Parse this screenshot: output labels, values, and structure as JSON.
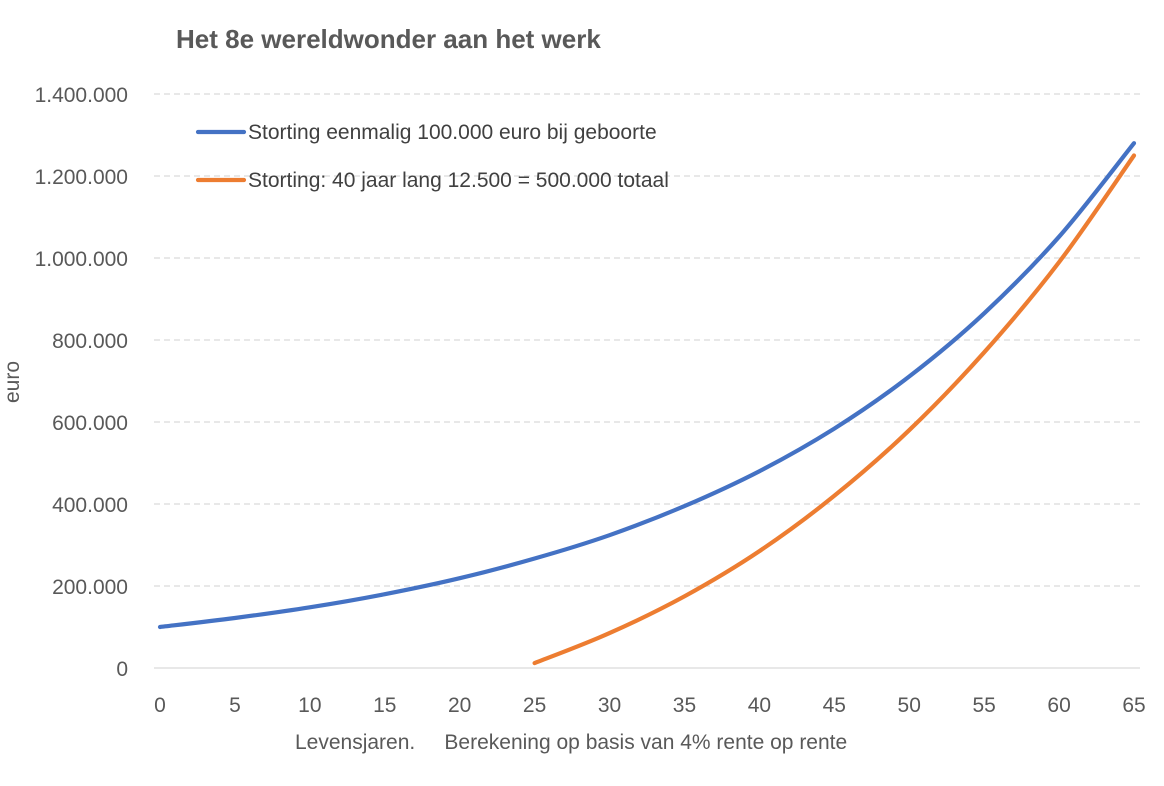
{
  "chart_data": {
    "type": "line",
    "title": "Het 8e wereldwonder aan het werk",
    "xlabel": "Levensjaren.     Berekening op basis van 4% rente op rente",
    "ylabel": "euro",
    "xlim": [
      0,
      65
    ],
    "ylim": [
      0,
      1400000
    ],
    "x_ticks": [
      "0",
      "5",
      "10",
      "15",
      "20",
      "25",
      "30",
      "35",
      "40",
      "45",
      "50",
      "55",
      "60",
      "65"
    ],
    "y_ticks": [
      "0",
      "200.000",
      "400.000",
      "600.000",
      "800.000",
      "1.000.000",
      "1.200.000",
      "1.400.000"
    ],
    "y_tick_values": [
      0,
      200000,
      400000,
      600000,
      800000,
      1000000,
      1200000,
      1400000
    ],
    "x_tick_values": [
      0,
      5,
      10,
      15,
      20,
      25,
      30,
      35,
      40,
      45,
      50,
      55,
      60,
      65
    ],
    "grid": true,
    "legend_position": "top-left",
    "series": [
      {
        "name": "Storting eenmalig 100.000 euro bij geboorte",
        "color": "#4472c4",
        "x": [
          0,
          5,
          10,
          15,
          20,
          25,
          30,
          35,
          40,
          45,
          50,
          55,
          60,
          65
        ],
        "values": [
          100000,
          122000,
          148000,
          180000,
          219000,
          267000,
          324000,
          395000,
          480000,
          584000,
          711000,
          865000,
          1052000,
          1280000
        ]
      },
      {
        "name": "Storting: 40 jaar lang 12.500  = 500.000 totaal",
        "color": "#ed7d31",
        "x": [
          25,
          30,
          35,
          40,
          45,
          50,
          55,
          60,
          65
        ],
        "values": [
          12000,
          85000,
          175000,
          285000,
          420000,
          580000,
          770000,
          990000,
          1250000
        ]
      }
    ]
  }
}
